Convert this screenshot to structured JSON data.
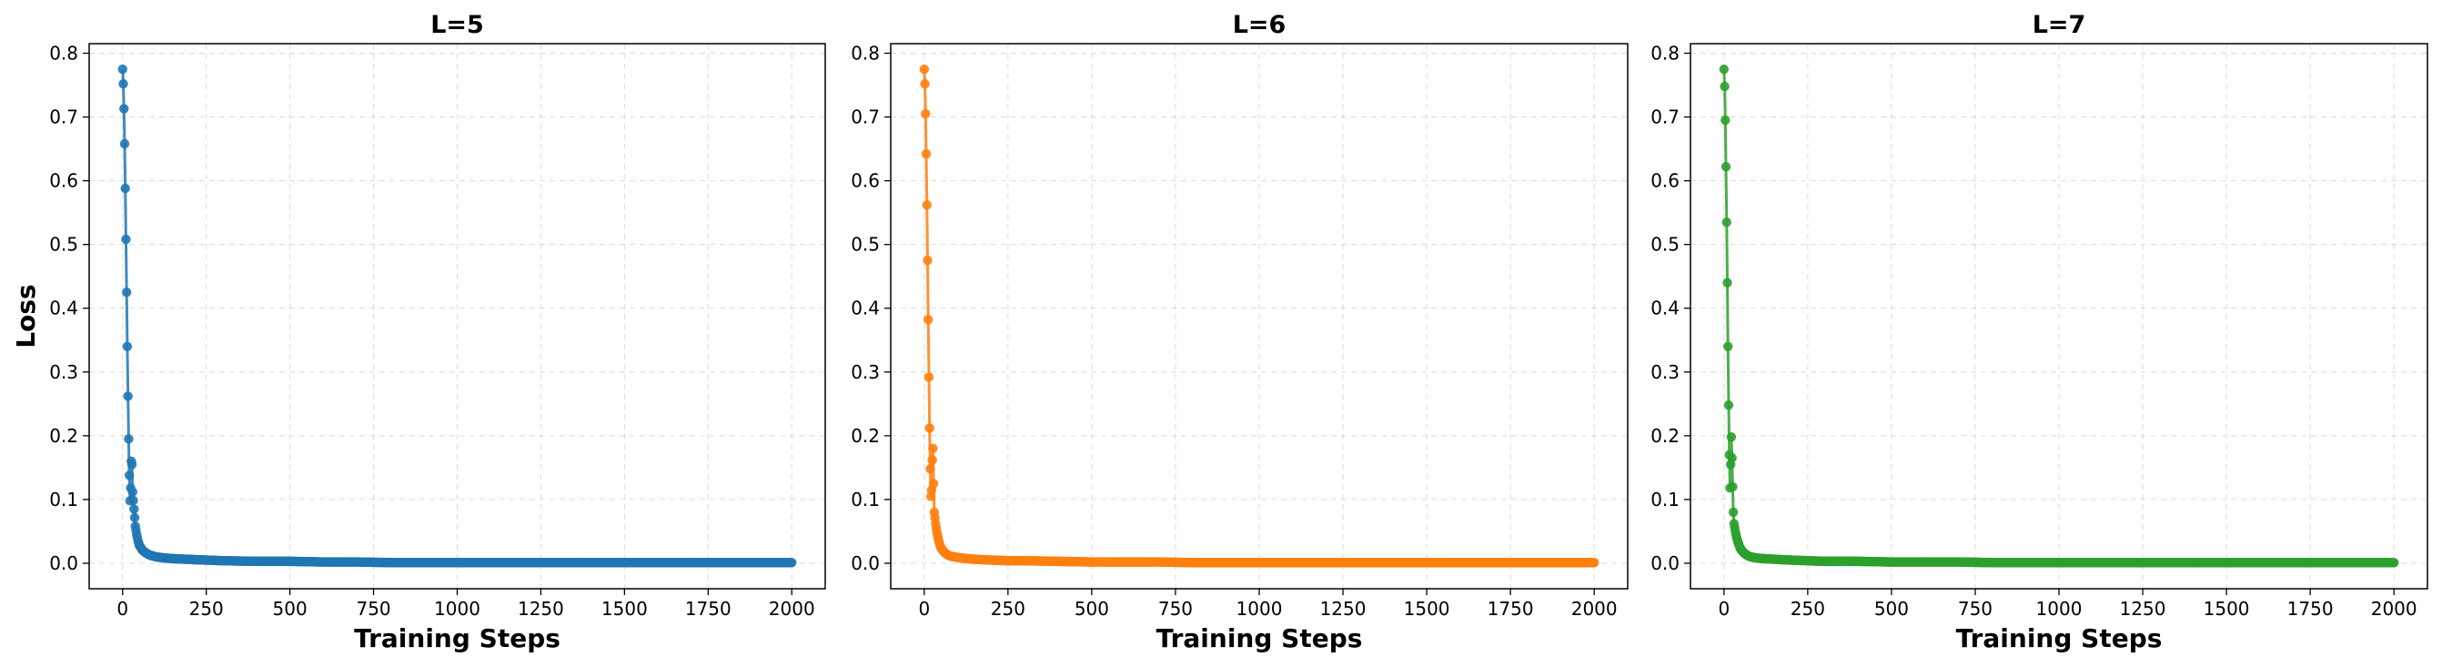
{
  "chart_data": [
    {
      "type": "line",
      "title": "L=5",
      "xlabel": "Training Steps",
      "ylabel": "Loss",
      "color": "#1f77b4",
      "xlim": [
        -100,
        2100
      ],
      "ylim": [
        -0.04,
        0.815
      ],
      "xticks": [
        0,
        250,
        500,
        750,
        1000,
        1250,
        1500,
        1750,
        2000
      ],
      "yticks": [
        0.0,
        0.1,
        0.2,
        0.3,
        0.4,
        0.5,
        0.6,
        0.7,
        0.8
      ],
      "grid": true,
      "markers": true,
      "series": [
        {
          "x": [
            0,
            2,
            4,
            6,
            8,
            10,
            12,
            14,
            16,
            18,
            20,
            22,
            24,
            26,
            28,
            30,
            34,
            38,
            42,
            46,
            50,
            60,
            70,
            80,
            100,
            130,
            160,
            200,
            250,
            300,
            400,
            500,
            600,
            700,
            800,
            1000,
            1250,
            1500,
            1750,
            2000
          ],
          "values": [
            0.775,
            0.752,
            0.713,
            0.658,
            0.588,
            0.508,
            0.425,
            0.34,
            0.262,
            0.195,
            0.138,
            0.098,
            0.118,
            0.16,
            0.155,
            0.112,
            0.085,
            0.058,
            0.045,
            0.035,
            0.028,
            0.02,
            0.016,
            0.013,
            0.01,
            0.008,
            0.007,
            0.006,
            0.005,
            0.004,
            0.003,
            0.003,
            0.002,
            0.002,
            0.001,
            0.001,
            0.001,
            0.001,
            0.001,
            0.001
          ]
        }
      ]
    },
    {
      "type": "line",
      "title": "L=6",
      "xlabel": "Training Steps",
      "ylabel": "",
      "color": "#ff7f0e",
      "xlim": [
        -100,
        2100
      ],
      "ylim": [
        -0.04,
        0.815
      ],
      "xticks": [
        0,
        250,
        500,
        750,
        1000,
        1250,
        1500,
        1750,
        2000
      ],
      "yticks": [
        0.0,
        0.1,
        0.2,
        0.3,
        0.4,
        0.5,
        0.6,
        0.7,
        0.8
      ],
      "grid": true,
      "markers": true,
      "series": [
        {
          "x": [
            0,
            2,
            4,
            6,
            8,
            10,
            12,
            14,
            16,
            18,
            20,
            22,
            24,
            26,
            28,
            30,
            34,
            38,
            42,
            46,
            50,
            60,
            70,
            80,
            100,
            130,
            160,
            200,
            250,
            300,
            400,
            500,
            600,
            700,
            800,
            1000,
            1250,
            1500,
            1750,
            2000
          ],
          "values": [
            0.775,
            0.752,
            0.705,
            0.642,
            0.562,
            0.475,
            0.382,
            0.292,
            0.212,
            0.148,
            0.105,
            0.115,
            0.162,
            0.18,
            0.125,
            0.08,
            0.062,
            0.048,
            0.038,
            0.03,
            0.024,
            0.017,
            0.013,
            0.011,
            0.009,
            0.007,
            0.006,
            0.005,
            0.004,
            0.004,
            0.003,
            0.002,
            0.002,
            0.002,
            0.001,
            0.001,
            0.001,
            0.001,
            0.001,
            0.001
          ]
        }
      ]
    },
    {
      "type": "line",
      "title": "L=7",
      "xlabel": "Training Steps",
      "ylabel": "",
      "color": "#2ca02c",
      "xlim": [
        -100,
        2100
      ],
      "ylim": [
        -0.04,
        0.815
      ],
      "xticks": [
        0,
        250,
        500,
        750,
        1000,
        1250,
        1500,
        1750,
        2000
      ],
      "yticks": [
        0.0,
        0.1,
        0.2,
        0.3,
        0.4,
        0.5,
        0.6,
        0.7,
        0.8
      ],
      "grid": true,
      "markers": true,
      "series": [
        {
          "x": [
            0,
            2,
            4,
            6,
            8,
            10,
            12,
            14,
            16,
            18,
            20,
            22,
            24,
            26,
            28,
            30,
            34,
            38,
            42,
            46,
            50,
            60,
            70,
            80,
            100,
            130,
            160,
            200,
            250,
            300,
            400,
            500,
            600,
            700,
            800,
            1000,
            1250,
            1500,
            1750,
            2000
          ],
          "values": [
            0.775,
            0.748,
            0.695,
            0.622,
            0.535,
            0.44,
            0.34,
            0.248,
            0.17,
            0.118,
            0.155,
            0.198,
            0.165,
            0.12,
            0.08,
            0.062,
            0.05,
            0.04,
            0.033,
            0.027,
            0.022,
            0.016,
            0.012,
            0.01,
            0.008,
            0.007,
            0.006,
            0.005,
            0.004,
            0.003,
            0.003,
            0.002,
            0.002,
            0.002,
            0.001,
            0.001,
            0.001,
            0.001,
            0.001,
            0.001
          ]
        }
      ]
    }
  ]
}
